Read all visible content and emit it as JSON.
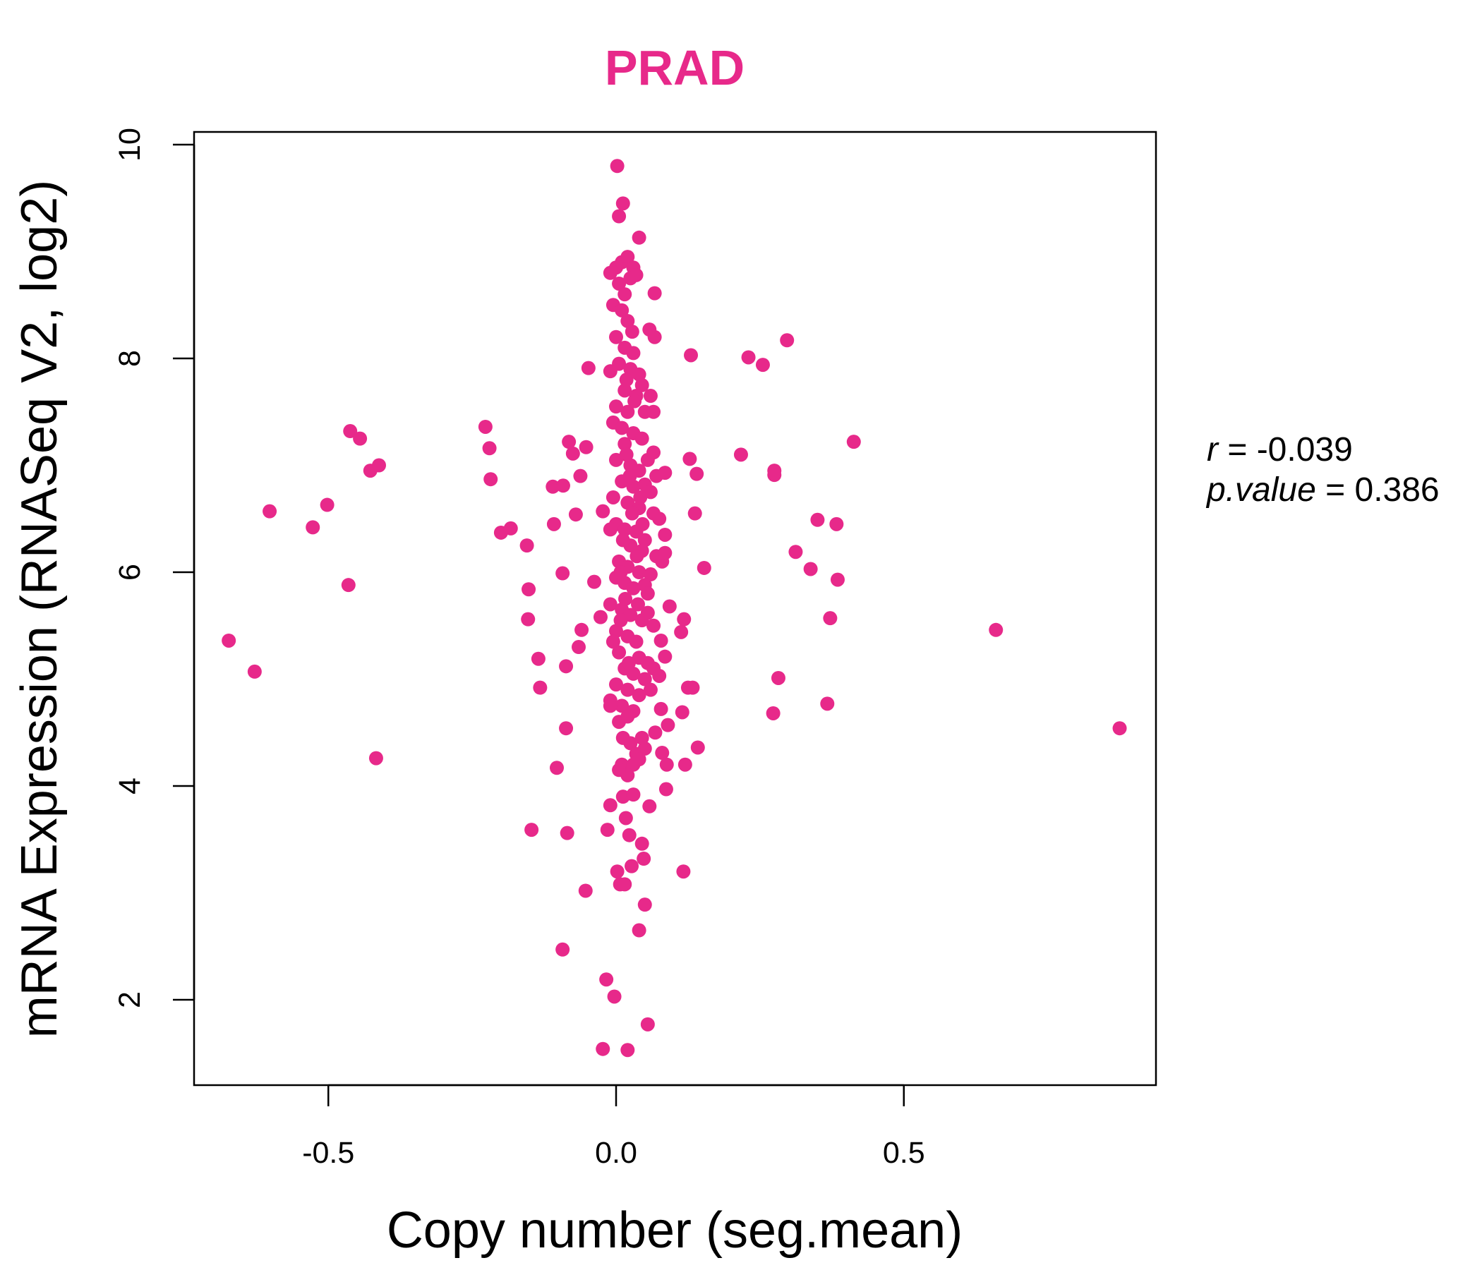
{
  "chart_data": {
    "type": "scatter",
    "title": "PRAD",
    "xlabel": "Copy number (seg.mean)",
    "ylabel": "mRNA Expression (RNASeq V2, log2)",
    "xlim": [
      -0.72,
      0.91
    ],
    "ylim": [
      1.35,
      10.1
    ],
    "x_ticks": [
      -0.5,
      0.0,
      0.5
    ],
    "x_tick_labels": [
      "-0.5",
      "0.0",
      "0.5"
    ],
    "y_ticks": [
      2,
      4,
      6,
      8,
      10
    ],
    "y_tick_labels": [
      "2",
      "4",
      "6",
      "8",
      "10"
    ],
    "grid": false,
    "point_color": "#E7298A",
    "annotations": {
      "r_label": "r",
      "r_value": "= -0.039",
      "p_label": "p.value",
      "p_value": "= 0.386"
    },
    "points": [
      [
        -0.673,
        5.36
      ],
      [
        -0.628,
        5.07
      ],
      [
        -0.602,
        6.57
      ],
      [
        -0.527,
        6.42
      ],
      [
        -0.502,
        6.63
      ],
      [
        -0.465,
        5.88
      ],
      [
        -0.462,
        7.32
      ],
      [
        -0.445,
        7.25
      ],
      [
        -0.427,
        6.95
      ],
      [
        -0.412,
        7.0
      ],
      [
        -0.417,
        4.26
      ],
      [
        -0.227,
        7.36
      ],
      [
        -0.22,
        7.16
      ],
      [
        -0.218,
        6.87
      ],
      [
        -0.2,
        6.37
      ],
      [
        -0.183,
        6.41
      ],
      [
        -0.155,
        6.25
      ],
      [
        -0.152,
        5.84
      ],
      [
        -0.153,
        5.56
      ],
      [
        -0.135,
        5.19
      ],
      [
        -0.132,
        4.92
      ],
      [
        -0.147,
        3.59
      ],
      [
        -0.11,
        6.8
      ],
      [
        -0.092,
        6.81
      ],
      [
        -0.108,
        6.45
      ],
      [
        -0.093,
        5.99
      ],
      [
        -0.103,
        4.17
      ],
      [
        -0.087,
        5.12
      ],
      [
        -0.087,
        4.54
      ],
      [
        -0.085,
        3.56
      ],
      [
        -0.093,
        2.47
      ],
      [
        -0.082,
        7.22
      ],
      [
        -0.075,
        7.11
      ],
      [
        -0.07,
        6.54
      ],
      [
        -0.062,
        6.9
      ],
      [
        -0.06,
        5.46
      ],
      [
        -0.065,
        5.3
      ],
      [
        -0.052,
        7.17
      ],
      [
        -0.048,
        7.91
      ],
      [
        -0.053,
        3.02
      ],
      [
        -0.038,
        5.91
      ],
      [
        -0.027,
        5.58
      ],
      [
        -0.023,
        6.57
      ],
      [
        -0.015,
        3.59
      ],
      [
        -0.017,
        2.19
      ],
      [
        -0.003,
        2.03
      ],
      [
        -0.023,
        1.54
      ],
      [
        0.02,
        1.53
      ],
      [
        0.055,
        1.77
      ],
      [
        0.04,
        2.65
      ],
      [
        0.05,
        2.89
      ],
      [
        0.002,
        9.8
      ],
      [
        0.012,
        9.45
      ],
      [
        0.005,
        9.33
      ],
      [
        0.04,
        9.13
      ],
      [
        0.067,
        8.61
      ],
      [
        0.058,
        8.27
      ],
      [
        0.067,
        8.2
      ],
      [
        0.13,
        8.03
      ],
      [
        0.23,
        8.01
      ],
      [
        0.255,
        7.94
      ],
      [
        0.297,
        8.17
      ],
      [
        0.413,
        7.22
      ],
      [
        0.217,
        7.1
      ],
      [
        0.128,
        7.06
      ],
      [
        0.14,
        6.92
      ],
      [
        0.275,
        6.95
      ],
      [
        0.275,
        6.91
      ],
      [
        0.137,
        6.55
      ],
      [
        0.35,
        6.49
      ],
      [
        0.383,
        6.45
      ],
      [
        0.312,
        6.19
      ],
      [
        0.338,
        6.03
      ],
      [
        0.385,
        5.93
      ],
      [
        0.153,
        6.04
      ],
      [
        0.372,
        5.57
      ],
      [
        0.66,
        5.46
      ],
      [
        0.282,
        5.01
      ],
      [
        0.273,
        4.68
      ],
      [
        0.367,
        4.77
      ],
      [
        0.875,
        4.54
      ],
      [
        0.118,
        5.56
      ],
      [
        0.093,
        5.68
      ],
      [
        0.113,
        5.44
      ],
      [
        0.125,
        4.92
      ],
      [
        0.133,
        4.92
      ],
      [
        0.115,
        4.69
      ],
      [
        0.142,
        4.36
      ],
      [
        0.12,
        4.2
      ],
      [
        0.117,
        3.2
      ],
      [
        0.087,
        3.97
      ],
      [
        0.058,
        3.81
      ],
      [
        0.088,
        4.2
      ],
      [
        0.08,
        4.31
      ],
      [
        0.09,
        4.57
      ],
      [
        0.078,
        4.72
      ],
      [
        0.085,
        5.21
      ],
      [
        0.078,
        5.36
      ],
      [
        0.075,
        5.03
      ],
      [
        0.068,
        4.5
      ],
      [
        0.048,
        3.32
      ],
      [
        0.045,
        3.46
      ],
      [
        0.027,
        3.25
      ],
      [
        0.023,
        3.54
      ],
      [
        0.007,
        3.08
      ],
      [
        0.002,
        3.2
      ],
      [
        -0.01,
        3.82
      ],
      [
        0.012,
        3.9
      ],
      [
        0.03,
        3.92
      ],
      [
        0.017,
        3.7
      ],
      [
        0.015,
        3.08
      ],
      [
        0.0,
        8.85
      ],
      [
        0.01,
        8.9
      ],
      [
        0.02,
        8.95
      ],
      [
        0.03,
        8.85
      ],
      [
        -0.01,
        8.8
      ],
      [
        0.005,
        8.7
      ],
      [
        0.025,
        8.75
      ],
      [
        0.015,
        8.6
      ],
      [
        0.035,
        8.78
      ],
      [
        -0.005,
        8.5
      ],
      [
        0.01,
        8.45
      ],
      [
        0.02,
        8.35
      ],
      [
        0.0,
        8.2
      ],
      [
        0.015,
        8.1
      ],
      [
        0.03,
        8.05
      ],
      [
        0.005,
        7.95
      ],
      [
        0.025,
        7.9
      ],
      [
        0.04,
        7.85
      ],
      [
        -0.01,
        7.88
      ],
      [
        0.045,
        7.75
      ],
      [
        0.015,
        7.7
      ],
      [
        0.035,
        7.65
      ],
      [
        0.0,
        7.55
      ],
      [
        0.02,
        7.5
      ],
      [
        0.05,
        7.5
      ],
      [
        0.06,
        7.65
      ],
      [
        0.065,
        7.5
      ],
      [
        -0.005,
        7.4
      ],
      [
        0.01,
        7.35
      ],
      [
        0.03,
        7.3
      ],
      [
        0.045,
        7.25
      ],
      [
        0.015,
        7.2
      ],
      [
        0.055,
        7.05
      ],
      [
        0.065,
        7.12
      ],
      [
        0.0,
        7.05
      ],
      [
        0.025,
        7.0
      ],
      [
        0.04,
        6.95
      ],
      [
        0.07,
        6.9
      ],
      [
        0.085,
        6.93
      ],
      [
        0.01,
        6.85
      ],
      [
        0.03,
        6.8
      ],
      [
        0.05,
        6.82
      ],
      [
        0.06,
        6.75
      ],
      [
        -0.005,
        6.7
      ],
      [
        0.02,
        6.65
      ],
      [
        0.04,
        6.6
      ],
      [
        0.065,
        6.55
      ],
      [
        0.075,
        6.5
      ],
      [
        0.0,
        6.45
      ],
      [
        0.015,
        6.4
      ],
      [
        0.035,
        6.38
      ],
      [
        0.05,
        6.3
      ],
      [
        0.085,
        6.35
      ],
      [
        -0.01,
        6.4
      ],
      [
        0.025,
        6.25
      ],
      [
        0.045,
        6.2
      ],
      [
        0.07,
        6.15
      ],
      [
        0.08,
        6.1
      ],
      [
        0.085,
        6.18
      ],
      [
        0.005,
        6.1
      ],
      [
        0.02,
        6.05
      ],
      [
        0.04,
        6.0
      ],
      [
        0.06,
        5.98
      ],
      [
        0.0,
        5.95
      ],
      [
        0.015,
        5.9
      ],
      [
        0.03,
        5.85
      ],
      [
        0.05,
        5.88
      ],
      [
        0.055,
        5.8
      ],
      [
        -0.01,
        5.7
      ],
      [
        0.01,
        5.65
      ],
      [
        0.025,
        5.6
      ],
      [
        0.045,
        5.55
      ],
      [
        0.055,
        5.62
      ],
      [
        0.065,
        5.5
      ],
      [
        0.0,
        5.45
      ],
      [
        0.02,
        5.4
      ],
      [
        0.035,
        5.35
      ],
      [
        -0.005,
        5.35
      ],
      [
        0.005,
        5.25
      ],
      [
        0.04,
        5.2
      ],
      [
        0.055,
        5.15
      ],
      [
        0.065,
        5.1
      ],
      [
        0.015,
        5.1
      ],
      [
        0.03,
        5.05
      ],
      [
        0.05,
        5.0
      ],
      [
        0.0,
        4.95
      ],
      [
        0.02,
        4.9
      ],
      [
        0.04,
        4.85
      ],
      [
        0.06,
        4.9
      ],
      [
        -0.01,
        4.8
      ],
      [
        0.01,
        4.75
      ],
      [
        0.03,
        4.7
      ],
      [
        -0.01,
        4.75
      ],
      [
        0.005,
        4.6
      ],
      [
        0.02,
        4.65
      ],
      [
        0.045,
        4.45
      ],
      [
        0.025,
        4.4
      ],
      [
        0.035,
        4.3
      ],
      [
        0.05,
        4.35
      ],
      [
        0.01,
        4.2
      ],
      [
        0.03,
        4.2
      ],
      [
        0.04,
        4.25
      ],
      [
        0.02,
        4.1
      ],
      [
        0.005,
        4.15
      ],
      [
        0.012,
        6.3
      ],
      [
        0.028,
        6.55
      ],
      [
        0.018,
        7.1
      ],
      [
        0.032,
        7.6
      ],
      [
        0.008,
        6.0
      ],
      [
        0.038,
        5.7
      ],
      [
        0.022,
        5.15
      ],
      [
        0.012,
        4.45
      ],
      [
        0.042,
        6.7
      ],
      [
        0.018,
        7.8
      ],
      [
        0.028,
        8.25
      ],
      [
        0.008,
        5.55
      ],
      [
        0.036,
        6.15
      ],
      [
        0.024,
        6.9
      ],
      [
        0.016,
        5.75
      ],
      [
        0.046,
        6.45
      ]
    ]
  }
}
